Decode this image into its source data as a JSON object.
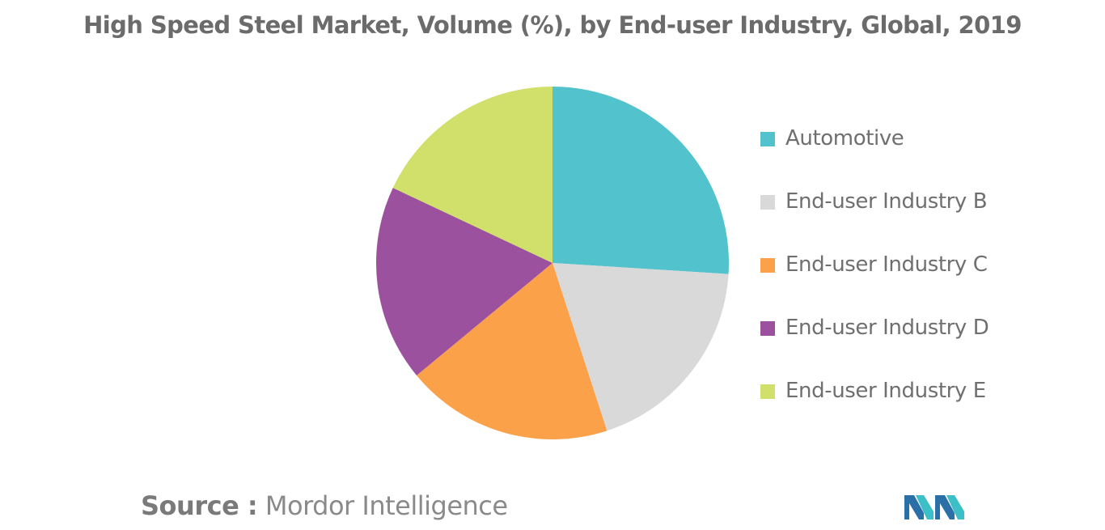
{
  "chart_data": {
    "type": "pie",
    "title": "High Speed Steel Market, Volume (%), by End-user Industry, Global, 2019",
    "categories": [
      "Automotive",
      "End-user Industry B",
      "End-user Industry C",
      "End-user Industry D",
      "End-user Industry E"
    ],
    "values": [
      26,
      19,
      19,
      18,
      18
    ],
    "colors": [
      "#52C3CC",
      "#D9D9D9",
      "#FBA14A",
      "#9C519E",
      "#D0E06A"
    ],
    "legend_position": "right",
    "start_angle": "12 o'clock",
    "direction": "clockwise"
  },
  "source": {
    "prefix": "Source :",
    "text": "Mordor Intelligence"
  },
  "logo": {
    "icon": "mordor-intelligence-logo",
    "colors": [
      "#2A6FA8",
      "#3DBFC8"
    ]
  }
}
